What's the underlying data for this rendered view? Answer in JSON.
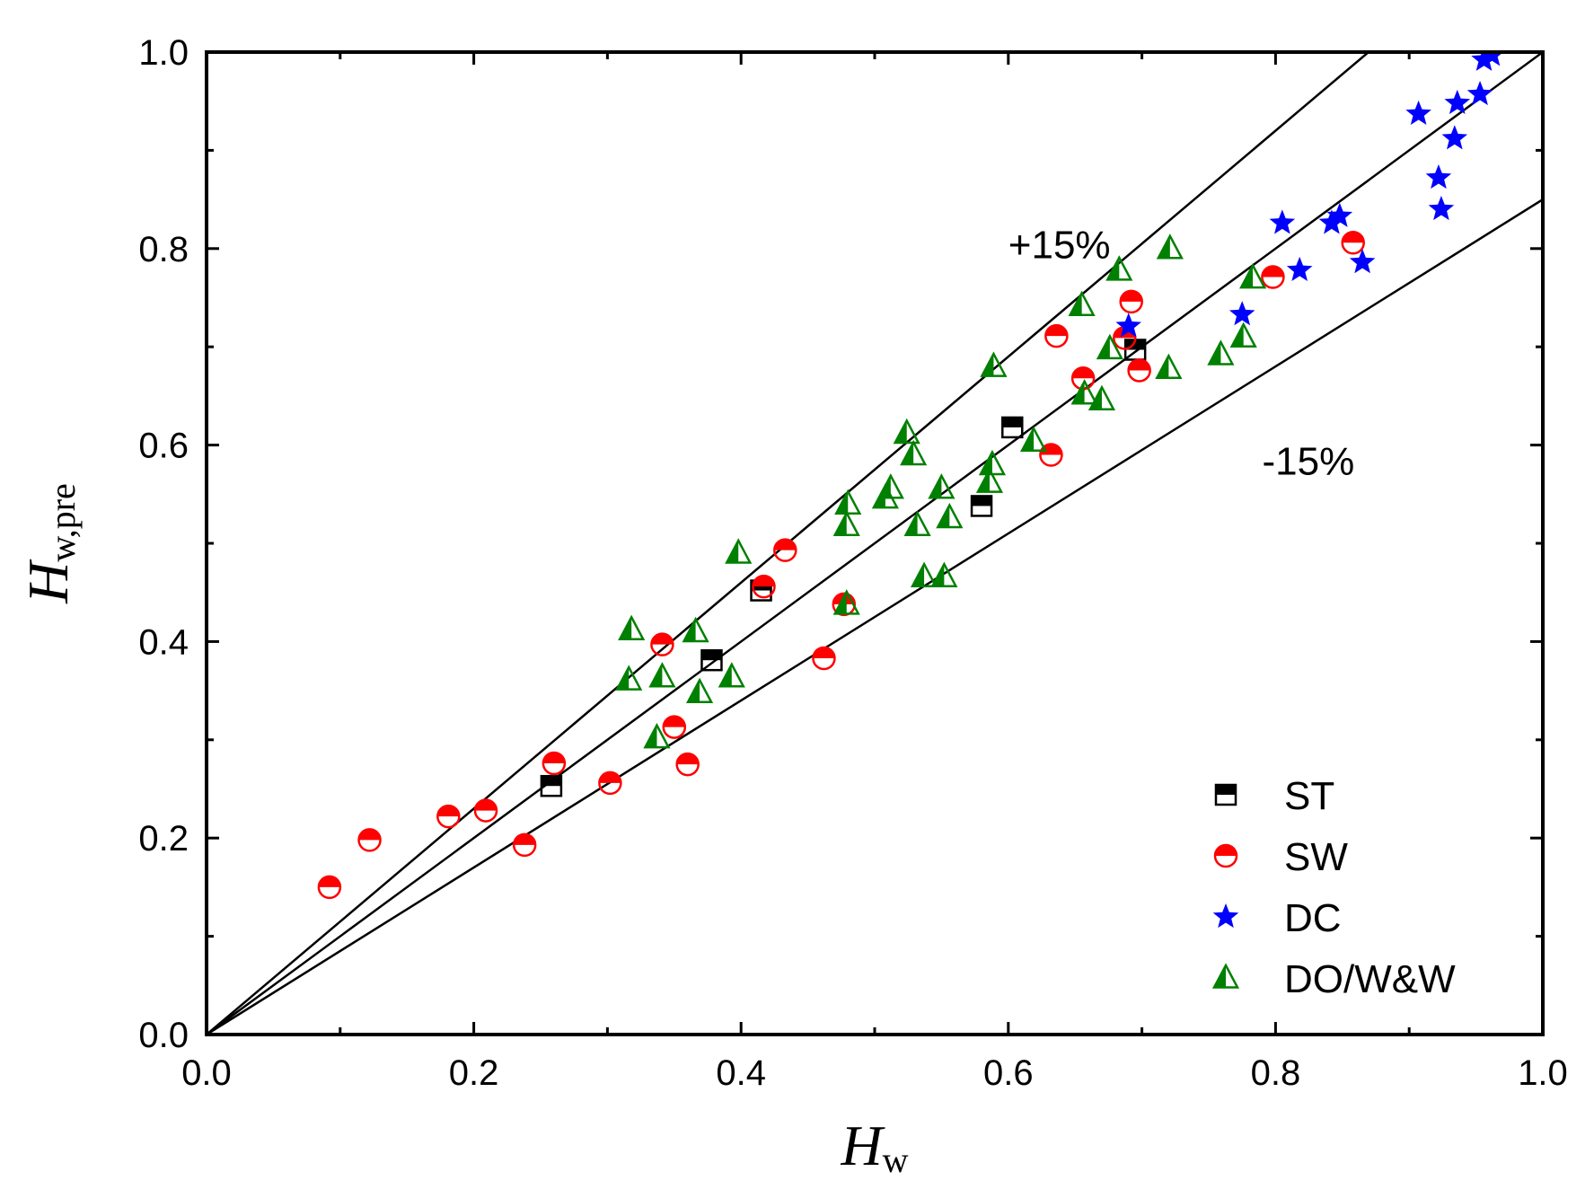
{
  "chart_data": {
    "type": "scatter",
    "xlabel": "H",
    "xlabel_sub": "w",
    "ylabel": "H",
    "ylabel_sub": "w,pre",
    "xlim": [
      0.0,
      1.0
    ],
    "ylim": [
      0.0,
      1.0
    ],
    "x_ticks": [
      0.0,
      0.2,
      0.4,
      0.6,
      0.8,
      1.0
    ],
    "y_ticks": [
      0.0,
      0.2,
      0.4,
      0.6,
      0.8,
      1.0
    ],
    "x_tick_labels": [
      "0.0",
      "0.2",
      "0.4",
      "0.6",
      "0.8",
      "1.0"
    ],
    "y_tick_labels": [
      "0.0",
      "0.2",
      "0.4",
      "0.6",
      "0.8",
      "1.0"
    ],
    "grid": false,
    "reference_lines": [
      {
        "slope": 1.15,
        "label": "+15%"
      },
      {
        "slope": 1.0,
        "label": ""
      },
      {
        "slope": 0.85,
        "label": "-15%"
      }
    ],
    "annotations": [
      {
        "text": "+15%",
        "x": 0.6,
        "y": 0.79
      },
      {
        "text": "-15%",
        "x": 0.79,
        "y": 0.57
      }
    ],
    "legend_position": "bottom-right",
    "series": [
      {
        "name": "ST",
        "marker": "half-square",
        "color": "#000000",
        "points": [
          [
            0.258,
            0.253
          ],
          [
            0.378,
            0.381
          ],
          [
            0.415,
            0.452
          ],
          [
            0.58,
            0.538
          ],
          [
            0.603,
            0.618
          ],
          [
            0.695,
            0.697
          ]
        ]
      },
      {
        "name": "SW",
        "marker": "half-circle",
        "color": "#ff0000",
        "points": [
          [
            0.092,
            0.15
          ],
          [
            0.122,
            0.198
          ],
          [
            0.181,
            0.222
          ],
          [
            0.209,
            0.228
          ],
          [
            0.238,
            0.193
          ],
          [
            0.26,
            0.276
          ],
          [
            0.302,
            0.256
          ],
          [
            0.341,
            0.397
          ],
          [
            0.35,
            0.313
          ],
          [
            0.36,
            0.275
          ],
          [
            0.417,
            0.456
          ],
          [
            0.433,
            0.493
          ],
          [
            0.462,
            0.383
          ],
          [
            0.477,
            0.438
          ],
          [
            0.632,
            0.59
          ],
          [
            0.636,
            0.711
          ],
          [
            0.656,
            0.668
          ],
          [
            0.687,
            0.709
          ],
          [
            0.692,
            0.746
          ],
          [
            0.698,
            0.676
          ],
          [
            0.798,
            0.771
          ],
          [
            0.858,
            0.806
          ]
        ]
      },
      {
        "name": "DC",
        "marker": "star",
        "color": "#0000ff",
        "points": [
          [
            0.69,
            0.721
          ],
          [
            0.775,
            0.733
          ],
          [
            0.805,
            0.826
          ],
          [
            0.818,
            0.778
          ],
          [
            0.842,
            0.826
          ],
          [
            0.848,
            0.833
          ],
          [
            0.865,
            0.786
          ],
          [
            0.907,
            0.937
          ],
          [
            0.922,
            0.872
          ],
          [
            0.924,
            0.84
          ],
          [
            0.934,
            0.912
          ],
          [
            0.936,
            0.948
          ],
          [
            0.953,
            0.957
          ],
          [
            0.956,
            0.992
          ],
          [
            0.962,
            0.997
          ]
        ]
      },
      {
        "name": "DO/W&W",
        "marker": "half-triangle",
        "color": "#008000",
        "points": [
          [
            0.316,
            0.361
          ],
          [
            0.318,
            0.412
          ],
          [
            0.337,
            0.302
          ],
          [
            0.341,
            0.364
          ],
          [
            0.366,
            0.41
          ],
          [
            0.369,
            0.348
          ],
          [
            0.393,
            0.364
          ],
          [
            0.398,
            0.49
          ],
          [
            0.479,
            0.438
          ],
          [
            0.479,
            0.518
          ],
          [
            0.48,
            0.54
          ],
          [
            0.508,
            0.546
          ],
          [
            0.512,
            0.556
          ],
          [
            0.524,
            0.612
          ],
          [
            0.529,
            0.59
          ],
          [
            0.532,
            0.518
          ],
          [
            0.537,
            0.466
          ],
          [
            0.55,
            0.556
          ],
          [
            0.552,
            0.466
          ],
          [
            0.556,
            0.526
          ],
          [
            0.586,
            0.562
          ],
          [
            0.588,
            0.58
          ],
          [
            0.589,
            0.68
          ],
          [
            0.619,
            0.604
          ],
          [
            0.655,
            0.742
          ],
          [
            0.657,
            0.652
          ],
          [
            0.67,
            0.646
          ],
          [
            0.676,
            0.698
          ],
          [
            0.683,
            0.778
          ],
          [
            0.721,
            0.8
          ],
          [
            0.72,
            0.678
          ],
          [
            0.759,
            0.692
          ],
          [
            0.776,
            0.71
          ],
          [
            0.783,
            0.77
          ]
        ]
      }
    ]
  }
}
